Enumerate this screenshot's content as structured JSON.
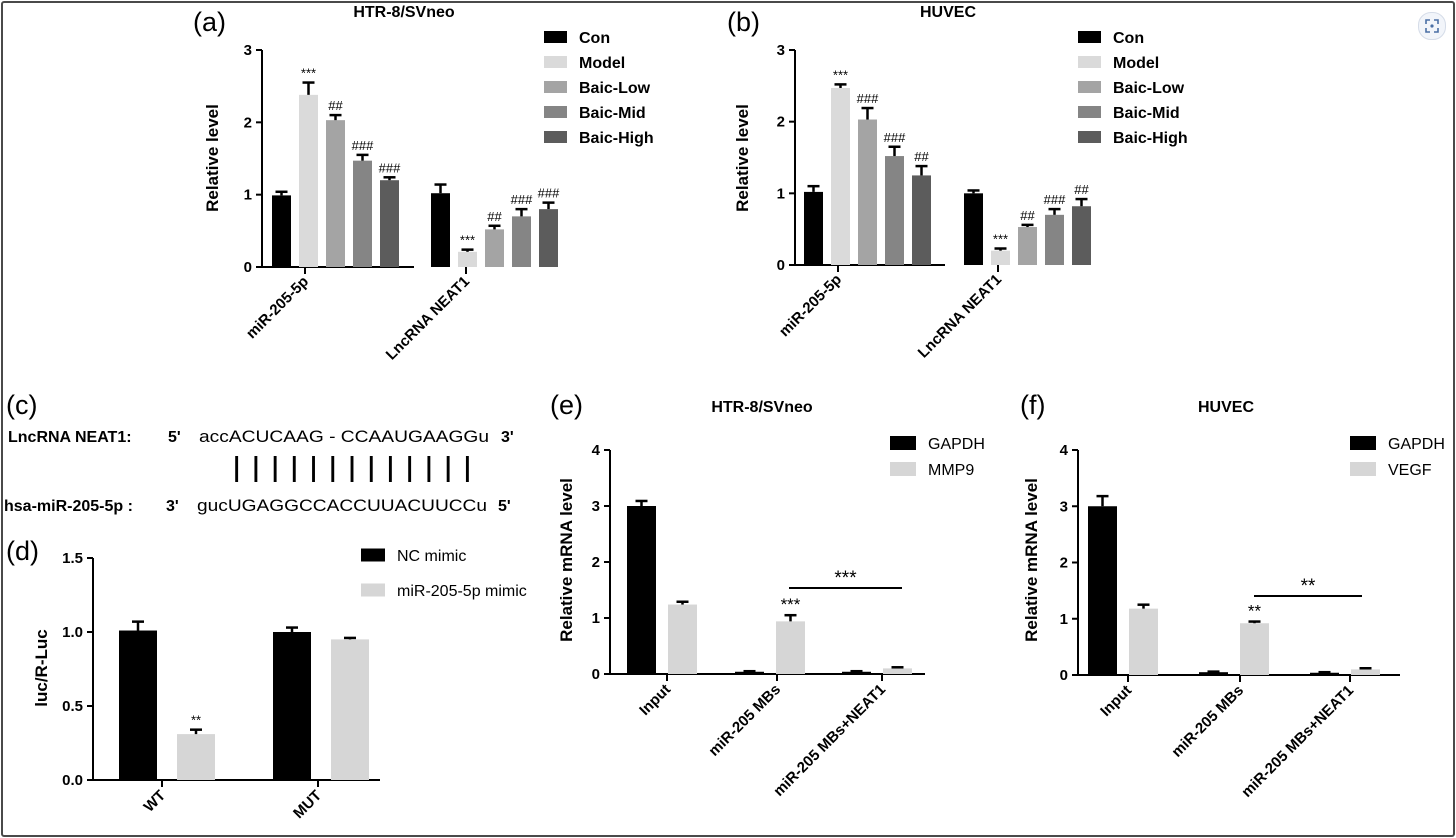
{
  "ui": {
    "expand_icon": "expand-icon"
  },
  "colors": {
    "Con": "#000000",
    "Model": "#dadada",
    "Baic-Low": "#a4a4a4",
    "Baic-Mid": "#858585",
    "Baic-High": "#5c5c5c",
    "black": "#000000",
    "light": "#d6d6d6"
  },
  "chart_data": [
    {
      "panel": "(a)",
      "title": "HTR-8/SVneo",
      "type": "bar",
      "ylabel": "Relative level",
      "ylim": [
        0,
        3
      ],
      "yticks": [
        "0",
        "1",
        "2",
        "3"
      ],
      "categories": [
        "miR-205-5p",
        "LncRNA NEAT1"
      ],
      "legend": [
        "Con",
        "Model",
        "Baic-Low",
        "Baic-Mid",
        "Baic-High"
      ],
      "series": [
        {
          "name": "Con",
          "values": [
            0.99,
            1.02
          ],
          "errors": [
            0.05,
            0.12
          ]
        },
        {
          "name": "Model",
          "values": [
            2.38,
            0.21
          ],
          "errors": [
            0.17,
            0.03
          ]
        },
        {
          "name": "Baic-Low",
          "values": [
            2.03,
            0.52
          ],
          "errors": [
            0.07,
            0.05
          ]
        },
        {
          "name": "Baic-Mid",
          "values": [
            1.47,
            0.7
          ],
          "errors": [
            0.08,
            0.1
          ]
        },
        {
          "name": "Baic-High",
          "values": [
            1.2,
            0.8
          ],
          "errors": [
            0.04,
            0.09
          ]
        }
      ],
      "annotations": [
        [
          "***",
          "##",
          "###",
          "###"
        ],
        [
          "***",
          "##",
          "###",
          "###"
        ]
      ]
    },
    {
      "panel": "(b)",
      "title": "HUVEC",
      "type": "bar",
      "ylabel": "Relative level",
      "ylim": [
        0,
        3
      ],
      "yticks": [
        "0",
        "1",
        "2",
        "3"
      ],
      "categories": [
        "miR-205-5p",
        "LncRNA NEAT1"
      ],
      "legend": [
        "Con",
        "Model",
        "Baic-Low",
        "Baic-Mid",
        "Baic-High"
      ],
      "series": [
        {
          "name": "Con",
          "values": [
            1.02,
            1.0
          ],
          "errors": [
            0.08,
            0.04
          ]
        },
        {
          "name": "Model",
          "values": [
            2.47,
            0.2
          ],
          "errors": [
            0.05,
            0.03
          ]
        },
        {
          "name": "Baic-Low",
          "values": [
            2.03,
            0.53
          ],
          "errors": [
            0.16,
            0.03
          ]
        },
        {
          "name": "Baic-Mid",
          "values": [
            1.52,
            0.7
          ],
          "errors": [
            0.13,
            0.08
          ]
        },
        {
          "name": "Baic-High",
          "values": [
            1.25,
            0.82
          ],
          "errors": [
            0.13,
            0.1
          ]
        }
      ],
      "annotations": [
        [
          "***",
          "###",
          "###",
          "##"
        ],
        [
          "***",
          "##",
          "###",
          "##"
        ]
      ]
    },
    {
      "panel": "(d)",
      "title": "",
      "type": "bar",
      "ylabel": "luc/R-Luc",
      "ylim": [
        0,
        1.5
      ],
      "yticks": [
        "0.0",
        "0.5",
        "1.0",
        "1.5"
      ],
      "categories": [
        "WT",
        "MUT"
      ],
      "legend": [
        "NC mimic",
        "miR-205-5p mimic"
      ],
      "series": [
        {
          "name": "NC mimic",
          "values": [
            1.01,
            1.0
          ],
          "errors": [
            0.06,
            0.03
          ]
        },
        {
          "name": "miR-205-5p mimic",
          "values": [
            0.31,
            0.95
          ],
          "errors": [
            0.03,
            0.01
          ]
        }
      ],
      "annotations": [
        [
          "**"
        ],
        [
          ""
        ]
      ]
    },
    {
      "panel": "(e)",
      "title": "HTR-8/SVneo",
      "type": "bar",
      "ylabel": "Relative mRNA level",
      "ylim": [
        0,
        4
      ],
      "yticks": [
        "0",
        "1",
        "2",
        "3",
        "4"
      ],
      "categories": [
        "Input",
        "miR-205 MBs",
        "miR-205 MBs+NEAT1"
      ],
      "legend": [
        "GAPDH",
        "MMP9"
      ],
      "series": [
        {
          "name": "GAPDH",
          "values": [
            3.0,
            0.04,
            0.04
          ],
          "errors": [
            0.09,
            0.01,
            0.01
          ]
        },
        {
          "name": "MMP9",
          "values": [
            1.24,
            0.94,
            0.1
          ],
          "errors": [
            0.05,
            0.11,
            0.02
          ]
        }
      ],
      "annotations": [
        [
          "",
          ""
        ],
        [
          "",
          "***"
        ],
        [
          "",
          ""
        ]
      ],
      "bracket_label": "***"
    },
    {
      "panel": "(f)",
      "title": "HUVEC",
      "type": "bar",
      "ylabel": "Relative mRNA level",
      "ylim": [
        0,
        4
      ],
      "yticks": [
        "0",
        "1",
        "2",
        "3",
        "4"
      ],
      "categories": [
        "Input",
        "miR-205 MBs",
        "miR-205 MBs+NEAT1"
      ],
      "legend": [
        "GAPDH",
        "VEGF"
      ],
      "series": [
        {
          "name": "GAPDH",
          "values": [
            3.0,
            0.05,
            0.04
          ],
          "errors": [
            0.18,
            0.01,
            0.01
          ]
        },
        {
          "name": "VEGF",
          "values": [
            1.18,
            0.92,
            0.1
          ],
          "errors": [
            0.07,
            0.03,
            0.02
          ]
        }
      ],
      "annotations": [
        [
          "",
          ""
        ],
        [
          "",
          "**"
        ],
        [
          "",
          ""
        ]
      ],
      "bracket_label": "**"
    }
  ],
  "panel_c": {
    "label": "(c)",
    "row1": {
      "name": "LncRNA NEAT1:",
      "p5": "5'",
      "seq": "accACUCAAG - CCAAUGAAGGu",
      "p3": "3'"
    },
    "pairs": "| | | |   |    | | | | | | | |",
    "row2": {
      "name": "hsa-miR-205-5p :",
      "p3": "3'",
      "seq": "gucUGAGGCCACCUUACUUCCu",
      "p5": "5'"
    }
  }
}
